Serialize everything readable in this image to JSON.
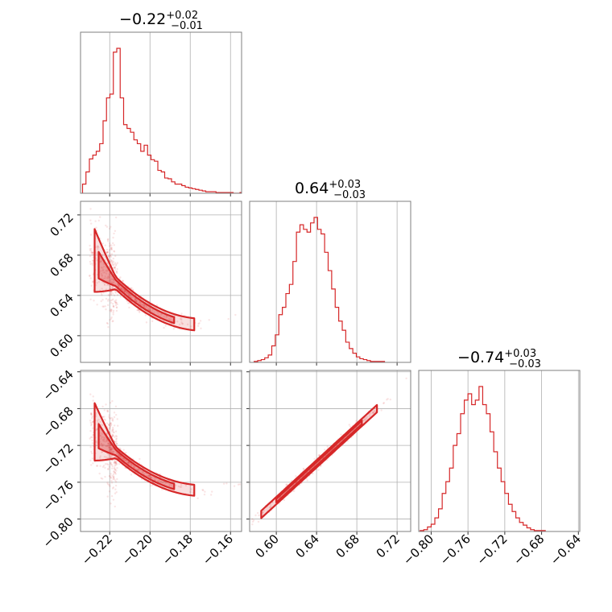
{
  "chart_data": {
    "type": "corner",
    "color": "#d62728",
    "parameters": [
      {
        "median": "−0.22",
        "plus": "+0.02",
        "minus": "−0.01",
        "range": [
          -0.2345,
          -0.1545
        ],
        "ticks": [
          -0.22,
          -0.2,
          -0.18,
          -0.16
        ],
        "tick_labels": [
          "−0.22",
          "−0.20",
          "−0.18",
          "−0.16"
        ]
      },
      {
        "median": "0.64",
        "plus": "+0.03",
        "minus": "−0.03",
        "range": [
          0.5735,
          0.7335
        ],
        "ticks": [
          0.6,
          0.64,
          0.68,
          0.72
        ],
        "tick_labels": [
          "0.60",
          "0.64",
          "0.68",
          "0.72"
        ]
      },
      {
        "median": "−0.74",
        "plus": "+0.03",
        "minus": "−0.03",
        "range": [
          -0.8135,
          -0.6385
        ],
        "ticks": [
          -0.8,
          -0.76,
          -0.72,
          -0.68,
          -0.64
        ],
        "tick_labels": [
          "−0.80",
          "−0.76",
          "−0.72",
          "−0.68",
          "−0.64"
        ]
      }
    ],
    "histograms": [
      {
        "param": 0,
        "edges_start": -0.2335,
        "bin_width": 0.0017,
        "counts": [
          12,
          28,
          45,
          50,
          55,
          65,
          95,
          125,
          130,
          185,
          190,
          125,
          90,
          85,
          80,
          70,
          65,
          55,
          63,
          50,
          44,
          42,
          30,
          28,
          20,
          19,
          15,
          12,
          12,
          10,
          8,
          7,
          6,
          5,
          4,
          3,
          2,
          2,
          2,
          1,
          1,
          1,
          1,
          1,
          0,
          0,
          1
        ]
      },
      {
        "param": 1,
        "edges_start": 0.578,
        "bin_width": 0.0035,
        "counts": [
          1,
          2,
          3,
          5,
          8,
          18,
          30,
          52,
          60,
          75,
          85,
          110,
          142,
          150,
          145,
          142,
          152,
          158,
          145,
          140,
          120,
          100,
          80,
          60,
          45,
          35,
          22,
          15,
          10,
          6,
          4,
          3,
          2,
          1,
          1,
          1,
          1
        ]
      },
      {
        "param": 2,
        "edges_start": -0.812,
        "bin_width": 0.004,
        "counts": [
          1,
          2,
          5,
          8,
          15,
          25,
          42,
          55,
          70,
          95,
          108,
          130,
          145,
          152,
          140,
          145,
          160,
          140,
          130,
          110,
          88,
          70,
          55,
          42,
          30,
          22,
          15,
          10,
          7,
          4,
          2,
          1,
          1,
          1
        ]
      }
    ],
    "scatter_panels": [
      {
        "x_param": 0,
        "y_param": 1,
        "relation": "y = 0.64 - 1.6*(x + 0.21) + 22*(x + 0.21)^2"
      },
      {
        "x_param": 0,
        "y_param": 2,
        "relation": "y = -0.74 - 1.6*(x + 0.21) + 22*(x + 0.21)^2"
      },
      {
        "x_param": 1,
        "y_param": 2,
        "relation": "y = x - 1.38"
      }
    ]
  }
}
